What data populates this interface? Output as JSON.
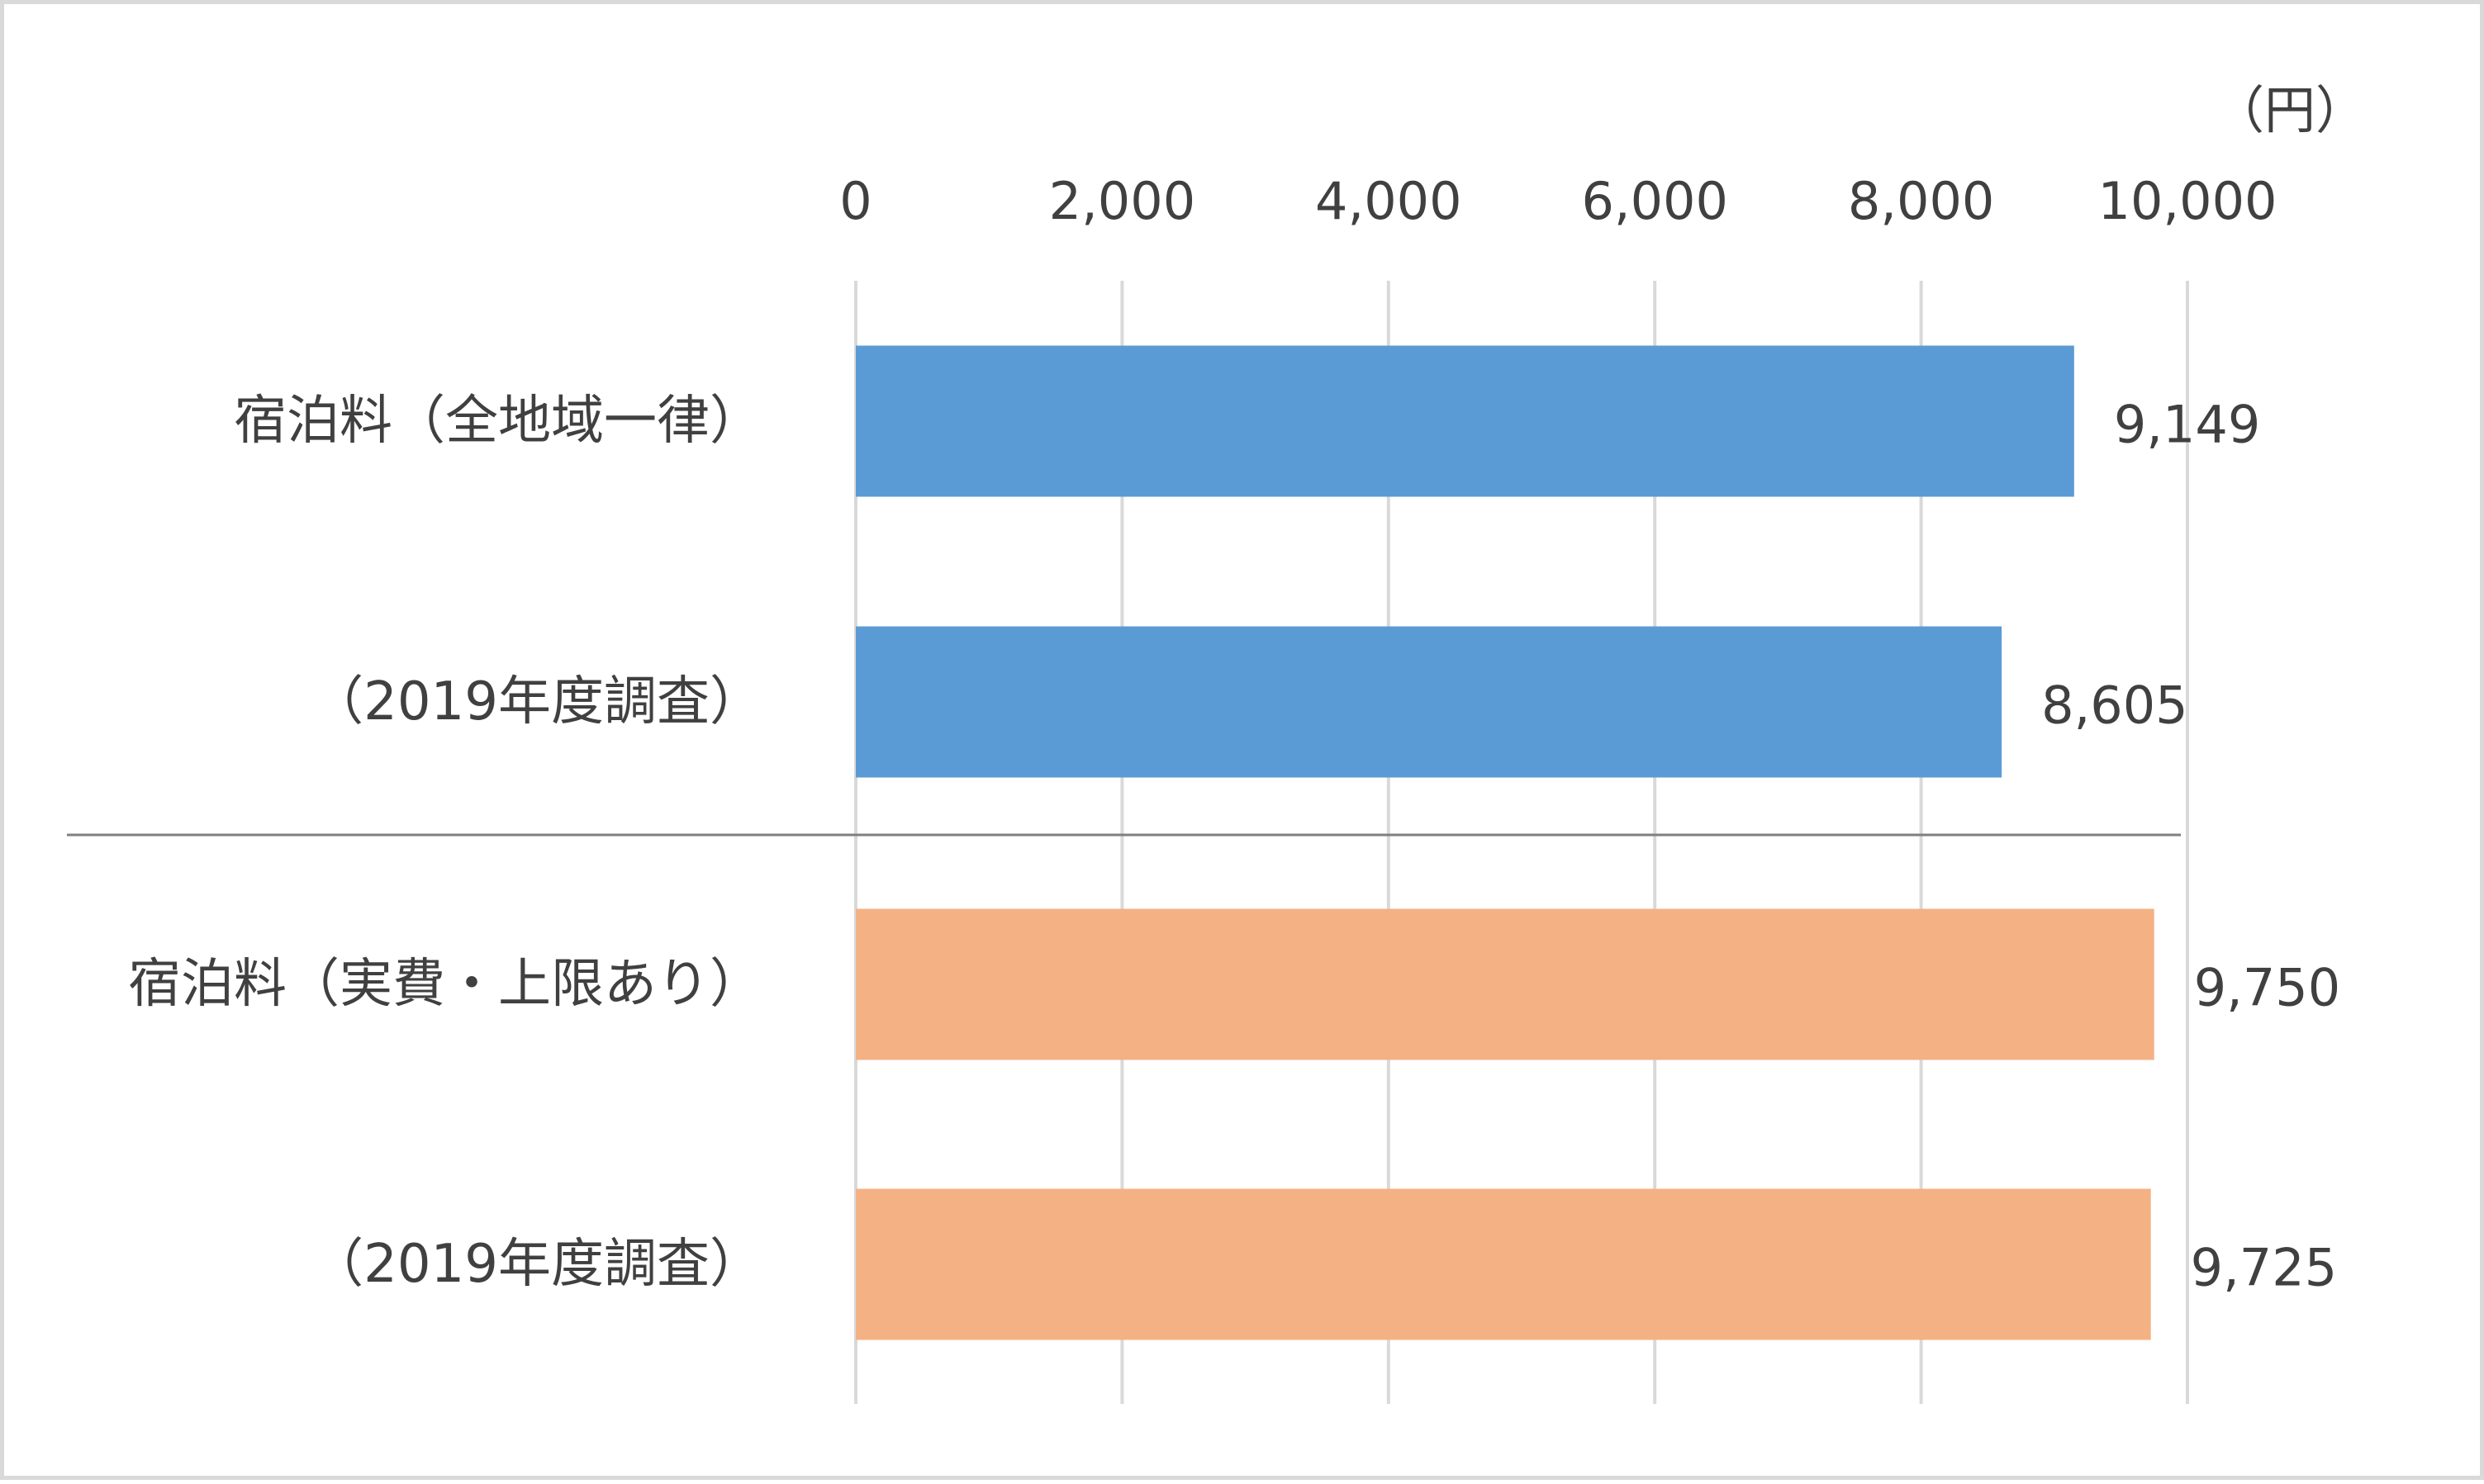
{
  "chart_data": {
    "type": "bar",
    "orientation": "horizontal",
    "unit": "（円）",
    "xlim": [
      0,
      10000
    ],
    "xticks": [
      0,
      2000,
      4000,
      6000,
      8000,
      10000
    ],
    "xtick_labels": [
      "0",
      "2,000",
      "4,000",
      "6,000",
      "8,000",
      "10,000"
    ],
    "axis_position": "top",
    "grid": true,
    "legend": "none",
    "categories": [
      "宿泊料（全地域一律）",
      "（2019年度調査）",
      "宿泊料（実費・上限あり）",
      "（2019年度調査）"
    ],
    "values": [
      9149,
      8605,
      9750,
      9725
    ],
    "value_labels": [
      "9,149",
      "8,605",
      "9,750",
      "9,725"
    ],
    "bar_colors": [
      "#5b9bd5",
      "#5b9bd5",
      "#f4b183",
      "#f4b183"
    ],
    "separator_after_index": 1
  },
  "colors": {
    "grid": "#d9d9d9",
    "separator": "#7f7f7f",
    "text": "#404040",
    "frame": "#d9d9d9"
  }
}
